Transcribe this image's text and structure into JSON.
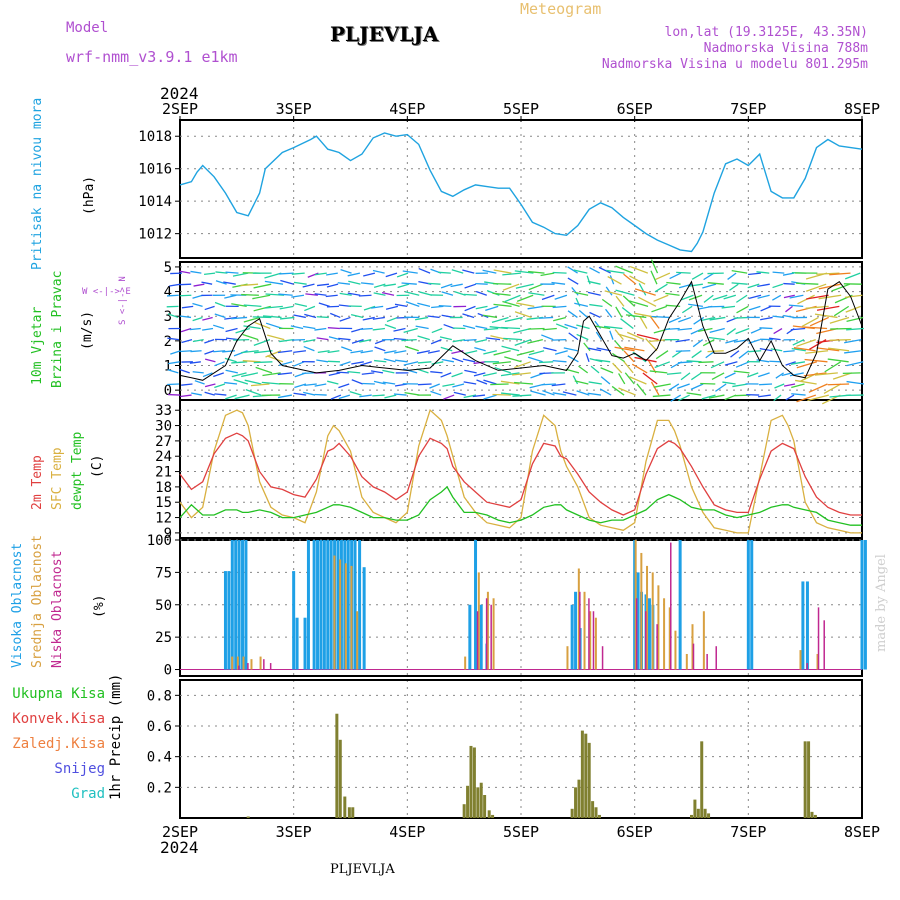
{
  "header": {
    "model_label": "Model",
    "model_name": "wrf-nmm_v3.9.1 e1km",
    "station": "PLJEVLJA",
    "meteogram": "Meteogram",
    "lonlat": "lon,lat (19.3125E, 43.35N)",
    "alt1": "Nadmorska Visina 788m",
    "alt2": "Nadmorska Visina u modelu 801.295m",
    "year": "2024",
    "footer_station": "PLJEVLJA",
    "credit": "made by Angel"
  },
  "colors": {
    "pressure": "#1fa3e0",
    "temp2m": "#e04040",
    "sfctemp": "#d9b040",
    "dewpt": "#22c022",
    "high_cloud": "#1ea0e6",
    "mid_cloud": "#d8a040",
    "low_cloud": "#c02890",
    "total_precip": "#808030",
    "model_label": "#b050d0",
    "meteogram": "#e8c070",
    "grid": "#888888"
  },
  "x_axis": {
    "labels": [
      "2SEP",
      "3SEP",
      "4SEP",
      "5SEP",
      "6SEP",
      "7SEP",
      "8SEP"
    ],
    "days": [
      0,
      1,
      2,
      3,
      4,
      5,
      6
    ]
  },
  "panel_labels": {
    "pressure": {
      "lines": [
        "Pritisak na nivou mora"
      ],
      "unit": "(hPa)"
    },
    "wind": {
      "lines": [
        "10m Vjetar",
        "Brzina i Pravac"
      ],
      "unit": "(m/s)",
      "compass": "W <-|-> E",
      "compass2": "S <-|-> N"
    },
    "temp": {
      "lines": [
        "2m Temp",
        "SFC Temp",
        "dewpt Temp"
      ],
      "unit": "(C)"
    },
    "cloud": {
      "lines": [
        "Visoka Oblacnost",
        "Srednja Oblacnost",
        "Niska Oblacnost"
      ],
      "unit": "(%)"
    },
    "precip": {
      "legend": [
        "Ukupna Kisa",
        "Konvek.Kisa",
        "Zaledj.Kisa",
        "Snijeg",
        "Grad"
      ],
      "ylabel": "1hr Precip (mm)"
    }
  },
  "chart_data": [
    {
      "type": "line",
      "name": "pressure",
      "ylabel": "(hPa)",
      "ylim": [
        1010.5,
        1019
      ],
      "yticks": [
        1012,
        1014,
        1016,
        1018
      ],
      "x": [
        0,
        0.1,
        0.15,
        0.2,
        0.3,
        0.4,
        0.5,
        0.6,
        0.7,
        0.75,
        0.9,
        1.0,
        1.15,
        1.2,
        1.25,
        1.3,
        1.35,
        1.4,
        1.5,
        1.6,
        1.7,
        1.8,
        1.9,
        2.0,
        2.1,
        2.2,
        2.3,
        2.4,
        2.5,
        2.6,
        2.7,
        2.8,
        2.9,
        3.0,
        3.1,
        3.2,
        3.3,
        3.4,
        3.5,
        3.6,
        3.7,
        3.8,
        3.9,
        4.0,
        4.1,
        4.2,
        4.3,
        4.4,
        4.5,
        4.55,
        4.6,
        4.7,
        4.8,
        4.9,
        5.0,
        5.1,
        5.2,
        5.3,
        5.4,
        5.5,
        5.6,
        5.7,
        5.8,
        5.9,
        6.0
      ],
      "values": [
        1015,
        1015.2,
        1015.8,
        1016.2,
        1015.5,
        1014.5,
        1013.3,
        1013.1,
        1014.5,
        1016.0,
        1017.0,
        1017.3,
        1017.8,
        1018.0,
        1017.6,
        1017.2,
        1017.1,
        1017.0,
        1016.5,
        1016.9,
        1017.9,
        1018.2,
        1018.0,
        1018.1,
        1017.5,
        1015.9,
        1014.6,
        1014.3,
        1014.7,
        1015.0,
        1014.9,
        1014.8,
        1014.8,
        1013.8,
        1012.7,
        1012.4,
        1012.0,
        1011.9,
        1012.5,
        1013.5,
        1013.9,
        1013.6,
        1013.0,
        1012.5,
        1012.0,
        1011.6,
        1011.3,
        1011.0,
        1010.9,
        1011.4,
        1012.1,
        1014.5,
        1016.3,
        1016.6,
        1016.2,
        1016.9,
        1014.6,
        1014.2,
        1014.2,
        1015.4,
        1017.3,
        1017.8,
        1017.4,
        1017.3,
        1017.2
      ]
    },
    {
      "type": "line",
      "name": "wind",
      "ylabel": "(m/s)",
      "ylim": [
        -0.4,
        5.2
      ],
      "yticks": [
        0,
        1,
        2,
        3,
        4,
        5
      ],
      "x": [
        0,
        0.1,
        0.2,
        0.3,
        0.4,
        0.5,
        0.6,
        0.7,
        0.8,
        0.9,
        1.0,
        1.2,
        1.4,
        1.6,
        1.8,
        2.0,
        2.2,
        2.4,
        2.6,
        2.8,
        3.0,
        3.2,
        3.4,
        3.5,
        3.55,
        3.6,
        3.7,
        3.8,
        3.9,
        4.0,
        4.1,
        4.2,
        4.3,
        4.4,
        4.5,
        4.6,
        4.7,
        4.8,
        4.9,
        5.0,
        5.1,
        5.2,
        5.3,
        5.4,
        5.5,
        5.6,
        5.7,
        5.8,
        5.9,
        6.0
      ],
      "values": [
        0.6,
        0.5,
        0.4,
        0.7,
        1.0,
        2.0,
        2.6,
        2.9,
        1.5,
        1.0,
        0.9,
        0.7,
        0.8,
        1.0,
        0.9,
        0.8,
        0.9,
        1.8,
        1.2,
        0.8,
        0.9,
        1.0,
        0.8,
        1.5,
        2.8,
        3.0,
        2.2,
        1.4,
        1.3,
        1.5,
        1.2,
        1.7,
        2.9,
        3.6,
        4.4,
        2.6,
        1.5,
        1.5,
        1.7,
        2.1,
        1.2,
        2.0,
        1.0,
        0.6,
        0.5,
        1.5,
        4.1,
        4.4,
        3.8,
        2.6
      ]
    },
    {
      "type": "line",
      "name": "temperature",
      "ylabel": "(C)",
      "ylim": [
        8,
        35
      ],
      "yticks": [
        9,
        12,
        15,
        18,
        21,
        24,
        27,
        30,
        33
      ],
      "x": [
        0,
        0.1,
        0.2,
        0.3,
        0.4,
        0.5,
        0.55,
        0.6,
        0.7,
        0.8,
        0.9,
        1.0,
        1.1,
        1.2,
        1.3,
        1.35,
        1.4,
        1.5,
        1.6,
        1.7,
        1.8,
        1.9,
        2.0,
        2.1,
        2.2,
        2.3,
        2.35,
        2.4,
        2.5,
        2.6,
        2.7,
        2.8,
        2.9,
        3.0,
        3.1,
        3.2,
        3.3,
        3.35,
        3.4,
        3.5,
        3.6,
        3.7,
        3.8,
        3.9,
        4.0,
        4.1,
        4.2,
        4.3,
        4.35,
        4.4,
        4.5,
        4.6,
        4.7,
        4.8,
        4.9,
        5.0,
        5.1,
        5.2,
        5.3,
        5.35,
        5.4,
        5.5,
        5.6,
        5.7,
        5.8,
        5.9,
        6.0
      ],
      "temp2m": [
        20.5,
        17.5,
        19.0,
        24.5,
        27.5,
        28.5,
        28.0,
        27.0,
        21.0,
        18.0,
        17.5,
        16.5,
        16.0,
        19.5,
        25.0,
        25.5,
        26.5,
        24.0,
        20.0,
        18.0,
        17.0,
        15.5,
        17.0,
        24.0,
        27.5,
        26.5,
        25.5,
        22.0,
        19.0,
        17.0,
        15.0,
        14.5,
        14.0,
        15.5,
        22.5,
        26.5,
        26.0,
        24.0,
        23.5,
        20.5,
        17.0,
        15.0,
        13.5,
        12.5,
        13.5,
        20.5,
        25.5,
        27.0,
        26.5,
        25.5,
        22.0,
        18.0,
        14.5,
        13.5,
        13.0,
        13.0,
        19.5,
        25.0,
        26.5,
        26.0,
        25.5,
        20.0,
        16.0,
        14.0,
        13.0,
        12.5,
        12.5
      ],
      "sfctemp": [
        15.0,
        12.0,
        14.0,
        25.0,
        32.0,
        33.0,
        32.5,
        30.0,
        19.0,
        14.0,
        12.5,
        12.0,
        11.0,
        17.0,
        28.0,
        30.0,
        29.0,
        25.0,
        16.0,
        13.0,
        12.0,
        11.0,
        13.0,
        26.0,
        33.0,
        31.0,
        28.0,
        24.0,
        16.0,
        13.0,
        11.0,
        10.5,
        10.0,
        12.0,
        25.0,
        32.0,
        30.0,
        25.0,
        22.0,
        18.0,
        12.0,
        10.5,
        10.0,
        9.5,
        11.0,
        23.0,
        31.0,
        31.0,
        29.0,
        26.0,
        18.0,
        13.0,
        10.0,
        9.5,
        9.0,
        9.0,
        20.0,
        31.0,
        32.0,
        30.0,
        27.0,
        15.0,
        11.0,
        10.0,
        9.5,
        9.0,
        9.0
      ],
      "dewpt": [
        12.0,
        14.5,
        12.5,
        12.5,
        13.5,
        13.5,
        13.0,
        13.0,
        13.5,
        13.0,
        12.0,
        12.0,
        12.5,
        13.0,
        14.0,
        14.5,
        14.5,
        14.0,
        13.0,
        12.0,
        12.0,
        11.5,
        11.5,
        12.5,
        15.5,
        17.0,
        18.0,
        16.0,
        13.0,
        13.0,
        12.5,
        11.5,
        11.0,
        11.5,
        12.5,
        14.0,
        14.5,
        14.5,
        13.5,
        12.5,
        11.5,
        11.0,
        11.5,
        11.5,
        12.5,
        13.5,
        15.5,
        16.5,
        16.0,
        15.5,
        14.0,
        13.5,
        13.5,
        12.5,
        12.0,
        12.5,
        13.0,
        14.0,
        14.5,
        14.5,
        14.0,
        13.5,
        13.0,
        11.5,
        11.0,
        10.5,
        10.5
      ]
    },
    {
      "type": "bar",
      "name": "cloudiness",
      "ylabel": "(%)",
      "ylim": [
        -5,
        100
      ],
      "yticks": [
        0,
        25,
        50,
        75,
        100
      ],
      "series": [
        {
          "name": "Visoka Oblacnost",
          "x": [
            0.4,
            0.43,
            0.46,
            0.49,
            0.52,
            0.55,
            0.58,
            1.0,
            1.03,
            1.1,
            1.13,
            1.18,
            1.21,
            1.24,
            1.27,
            1.3,
            1.33,
            1.36,
            1.39,
            1.42,
            1.45,
            1.48,
            1.51,
            1.54,
            1.58,
            1.62,
            2.55,
            2.6,
            2.65,
            2.7,
            3.45,
            3.48,
            3.52,
            4.0,
            4.03,
            4.06,
            4.1,
            4.13,
            4.16,
            4.4,
            5.0,
            5.03,
            5.48,
            5.52,
            6.0,
            6.03
          ],
          "values": [
            76,
            76,
            100,
            100,
            100,
            100,
            100,
            76,
            40,
            40,
            100,
            100,
            100,
            100,
            100,
            100,
            100,
            100,
            100,
            100,
            100,
            100,
            100,
            100,
            100,
            79,
            50,
            100,
            50,
            20,
            50,
            60,
            32,
            100,
            75,
            60,
            58,
            55,
            50,
            100,
            100,
            100,
            68,
            68,
            100,
            100
          ]
        },
        {
          "name": "Srednja Oblacnost",
          "x": [
            0.45,
            0.5,
            0.55,
            0.62,
            0.7,
            1.35,
            1.4,
            1.45,
            1.5,
            1.55,
            2.5,
            2.62,
            2.7,
            2.75,
            3.4,
            3.5,
            3.55,
            3.6,
            3.65,
            4.0,
            4.05,
            4.1,
            4.15,
            4.2,
            4.25,
            4.3,
            4.35,
            4.45,
            4.5,
            4.6,
            5.45,
            5.6
          ],
          "values": [
            10,
            10,
            10,
            8,
            10,
            88,
            85,
            82,
            80,
            45,
            10,
            75,
            60,
            55,
            18,
            78,
            60,
            45,
            40,
            100,
            90,
            80,
            75,
            65,
            55,
            48,
            30,
            12,
            35,
            45,
            15,
            12
          ]
        },
        {
          "name": "Niska Oblacnost",
          "x": [
            0.5,
            0.58,
            0.72,
            0.78,
            2.6,
            2.68,
            2.72,
            3.5,
            3.58,
            3.62,
            3.7,
            4.0,
            4.08,
            4.18,
            4.3,
            4.5,
            4.62,
            4.7,
            5.5,
            5.6,
            5.65
          ],
          "values": [
            3,
            5,
            8,
            5,
            45,
            55,
            50,
            60,
            55,
            45,
            18,
            55,
            45,
            35,
            98,
            20,
            12,
            18,
            5,
            48,
            38
          ]
        }
      ]
    },
    {
      "type": "bar",
      "name": "precipitation",
      "ylabel": "1hr Precip (mm)",
      "ylim": [
        0,
        0.9
      ],
      "yticks": [
        0.2,
        0.4,
        0.6,
        0.8
      ],
      "series": [
        {
          "name": "Ukupna Kisa",
          "x": [
            0.6,
            1.38,
            1.41,
            1.45,
            1.49,
            1.52,
            2.5,
            2.53,
            2.56,
            2.59,
            2.62,
            2.65,
            2.68,
            2.72,
            2.75,
            3.45,
            3.48,
            3.51,
            3.54,
            3.57,
            3.6,
            3.63,
            3.66,
            3.69,
            4.5,
            4.53,
            4.56,
            4.59,
            4.62,
            4.65,
            5.5,
            5.53,
            5.56,
            5.59
          ],
          "values": [
            0.01,
            0.68,
            0.51,
            0.14,
            0.07,
            0.07,
            0.09,
            0.21,
            0.47,
            0.46,
            0.2,
            0.23,
            0.15,
            0.05,
            0.02,
            0.06,
            0.2,
            0.25,
            0.57,
            0.55,
            0.49,
            0.11,
            0.07,
            0.02,
            0.02,
            0.12,
            0.06,
            0.5,
            0.06,
            0.03,
            0.5,
            0.5,
            0.04,
            0.02
          ]
        }
      ]
    }
  ]
}
